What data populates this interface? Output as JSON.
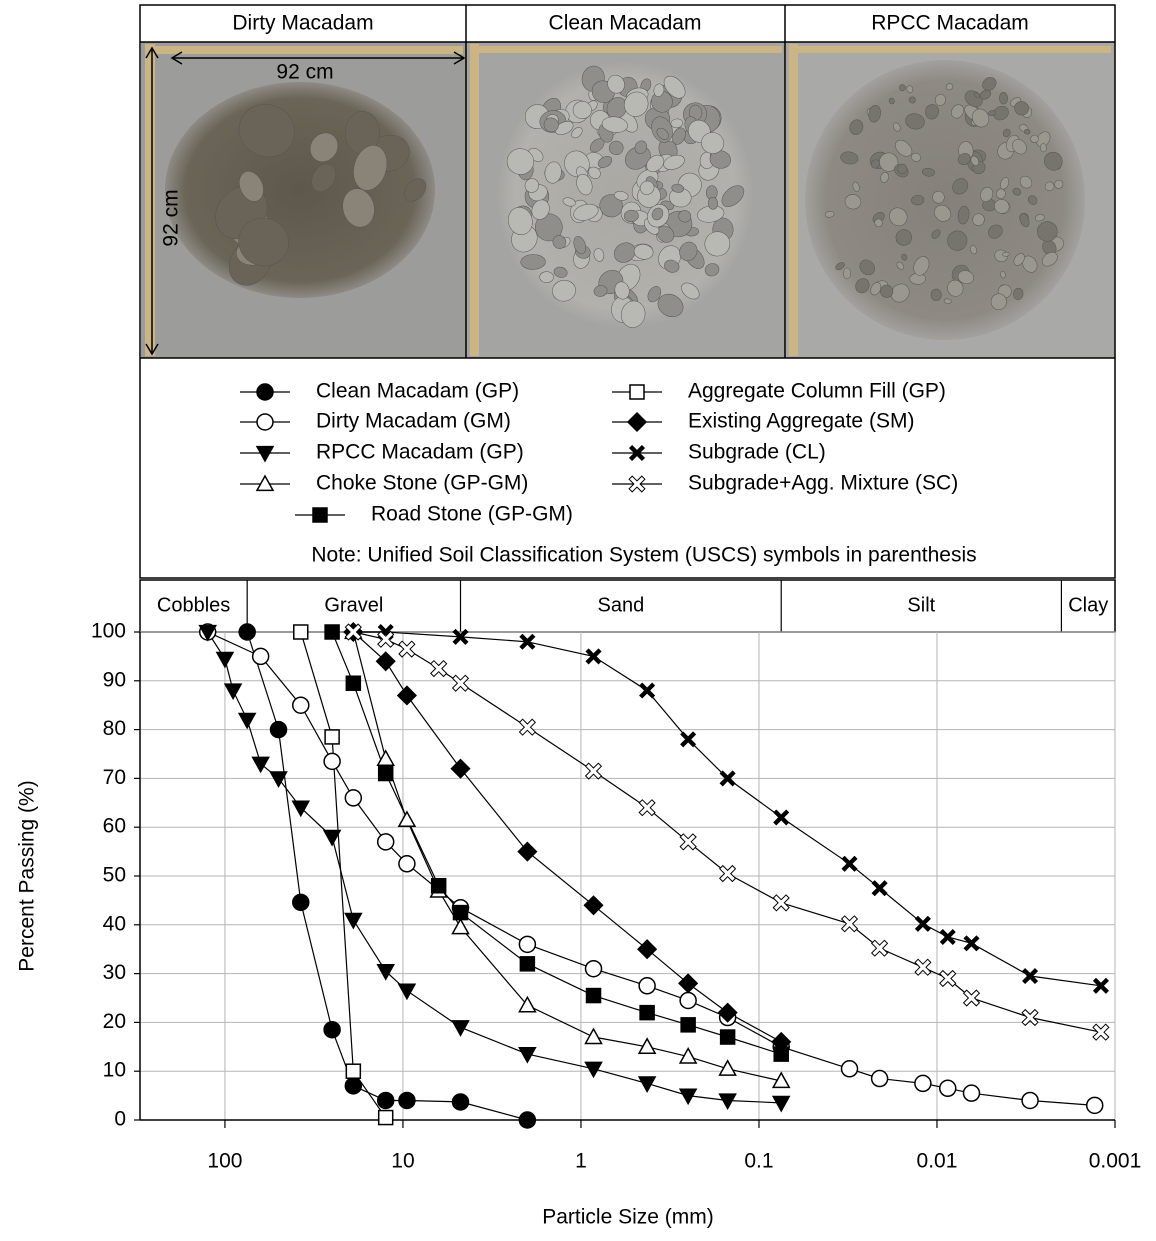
{
  "chart_data": {
    "type": "line",
    "panel_titles": [
      "Dirty Macadam",
      "Clean Macadam",
      "RPCC Macadam"
    ],
    "dimension_labels": [
      "92 cm",
      "92 cm"
    ],
    "note": "Note: Unified Soil Classification System (USCS) symbols in parenthesis",
    "soil_classes": [
      "Cobbles",
      "Gravel",
      "Sand",
      "Silt",
      "Clay"
    ],
    "soil_bounds": [
      75,
      4.75,
      0.075,
      0.002
    ],
    "x_label": "Particle Size (mm)",
    "y_label": "Percent  Passing (%)",
    "log_x": true,
    "grid": true,
    "xlim": [
      300,
      0.001
    ],
    "xticks": [
      100,
      10,
      1,
      0.1,
      0.01,
      0.001
    ],
    "ylim": [
      0,
      100
    ],
    "yticks": [
      0,
      10,
      20,
      30,
      40,
      50,
      60,
      70,
      80,
      90,
      100
    ],
    "series": [
      {
        "name": "Clean Macadam (GP)",
        "color": "#000000",
        "marker": "circle",
        "x": [
          75,
          50,
          37.5,
          25,
          19,
          12.5,
          9.5,
          4.75,
          2
        ],
        "values": [
          100,
          80,
          44.6,
          18.5,
          7,
          4,
          4,
          3.7,
          0
        ]
      },
      {
        "name": "Dirty Macadam (GM)",
        "color": "#000000",
        "marker": "open-circle",
        "x": [
          125,
          63,
          37.5,
          25,
          19,
          12.5,
          9.5,
          4.75,
          2,
          0.85,
          0.425,
          0.25,
          0.15,
          0.075,
          0.031,
          0.021,
          0.012,
          0.0087,
          0.0064,
          0.003,
          0.0013
        ],
        "values": [
          100,
          95,
          85,
          73.5,
          66,
          57,
          52.5,
          43.5,
          36,
          31,
          27.5,
          24.5,
          21,
          15,
          10.5,
          8.5,
          7.5,
          6.5,
          5.5,
          4,
          3
        ]
      },
      {
        "name": "RPCC Macadam (GP)",
        "color": "#000000",
        "marker": "triangle-down",
        "x": [
          125,
          100,
          90,
          75,
          63,
          50,
          37.5,
          25,
          19,
          12.5,
          9.5,
          4.75,
          2,
          0.85,
          0.425,
          0.25,
          0.15,
          0.075
        ],
        "values": [
          100,
          94.5,
          88,
          82,
          73,
          70,
          64,
          58,
          41,
          30.5,
          26.5,
          19,
          13.5,
          10.5,
          7.5,
          5,
          4,
          3.5
        ]
      },
      {
        "name": "Choke Stone (GP-GM)",
        "color": "#000000",
        "marker": "open-triangle",
        "x": [
          19,
          12.5,
          9.5,
          6.3,
          4.75,
          2,
          0.85,
          0.425,
          0.25,
          0.15,
          0.075
        ],
        "values": [
          100,
          74,
          61.5,
          47,
          39.5,
          23.5,
          17,
          15,
          13,
          10.5,
          8
        ]
      },
      {
        "name": "Road Stone (GP-GM)",
        "color": "#000000",
        "marker": "square",
        "x": [
          25,
          19,
          12.5,
          6.3,
          4.75,
          2,
          0.85,
          0.425,
          0.25,
          0.15,
          0.075
        ],
        "values": [
          100,
          89.5,
          71,
          48,
          42.5,
          32,
          25.5,
          22,
          19.5,
          17,
          13.5
        ]
      },
      {
        "name": "Aggregate Column Fill (GP)",
        "color": "#000000",
        "marker": "open-square",
        "x": [
          37.5,
          25,
          19,
          12.5
        ],
        "values": [
          100,
          78.5,
          10,
          0.5
        ]
      },
      {
        "name": "Existing Aggregate (SM)",
        "color": "#000000",
        "marker": "diamond",
        "x": [
          19,
          12.5,
          9.5,
          4.75,
          2,
          0.85,
          0.425,
          0.25,
          0.15,
          0.075
        ],
        "values": [
          100,
          94,
          87,
          72,
          55,
          44,
          35,
          28,
          22,
          16
        ]
      },
      {
        "name": "Subgrade (CL)",
        "color": "#000000",
        "marker": "x",
        "x": [
          19,
          12.5,
          4.75,
          2,
          0.85,
          0.425,
          0.25,
          0.15,
          0.075,
          0.031,
          0.021,
          0.012,
          0.0087,
          0.0064,
          0.003,
          0.0012
        ],
        "values": [
          100,
          100,
          99,
          98,
          95,
          88,
          78,
          70,
          62,
          52.5,
          47.5,
          40.2,
          37.5,
          36.2,
          29.5,
          27.5
        ]
      },
      {
        "name": "Subgrade+Agg. Mixture (SC)",
        "color": "#000000",
        "marker": "open-x",
        "x": [
          19,
          12.5,
          9.5,
          6.3,
          4.75,
          2,
          0.85,
          0.425,
          0.25,
          0.15,
          0.075,
          0.031,
          0.021,
          0.012,
          0.0087,
          0.0064,
          0.003,
          0.0012
        ],
        "values": [
          100,
          98.5,
          96.5,
          92.5,
          89.5,
          80.5,
          71.5,
          64,
          57,
          50.5,
          44.5,
          40.2,
          35.2,
          31.3,
          29,
          25,
          21,
          18
        ]
      }
    ]
  }
}
